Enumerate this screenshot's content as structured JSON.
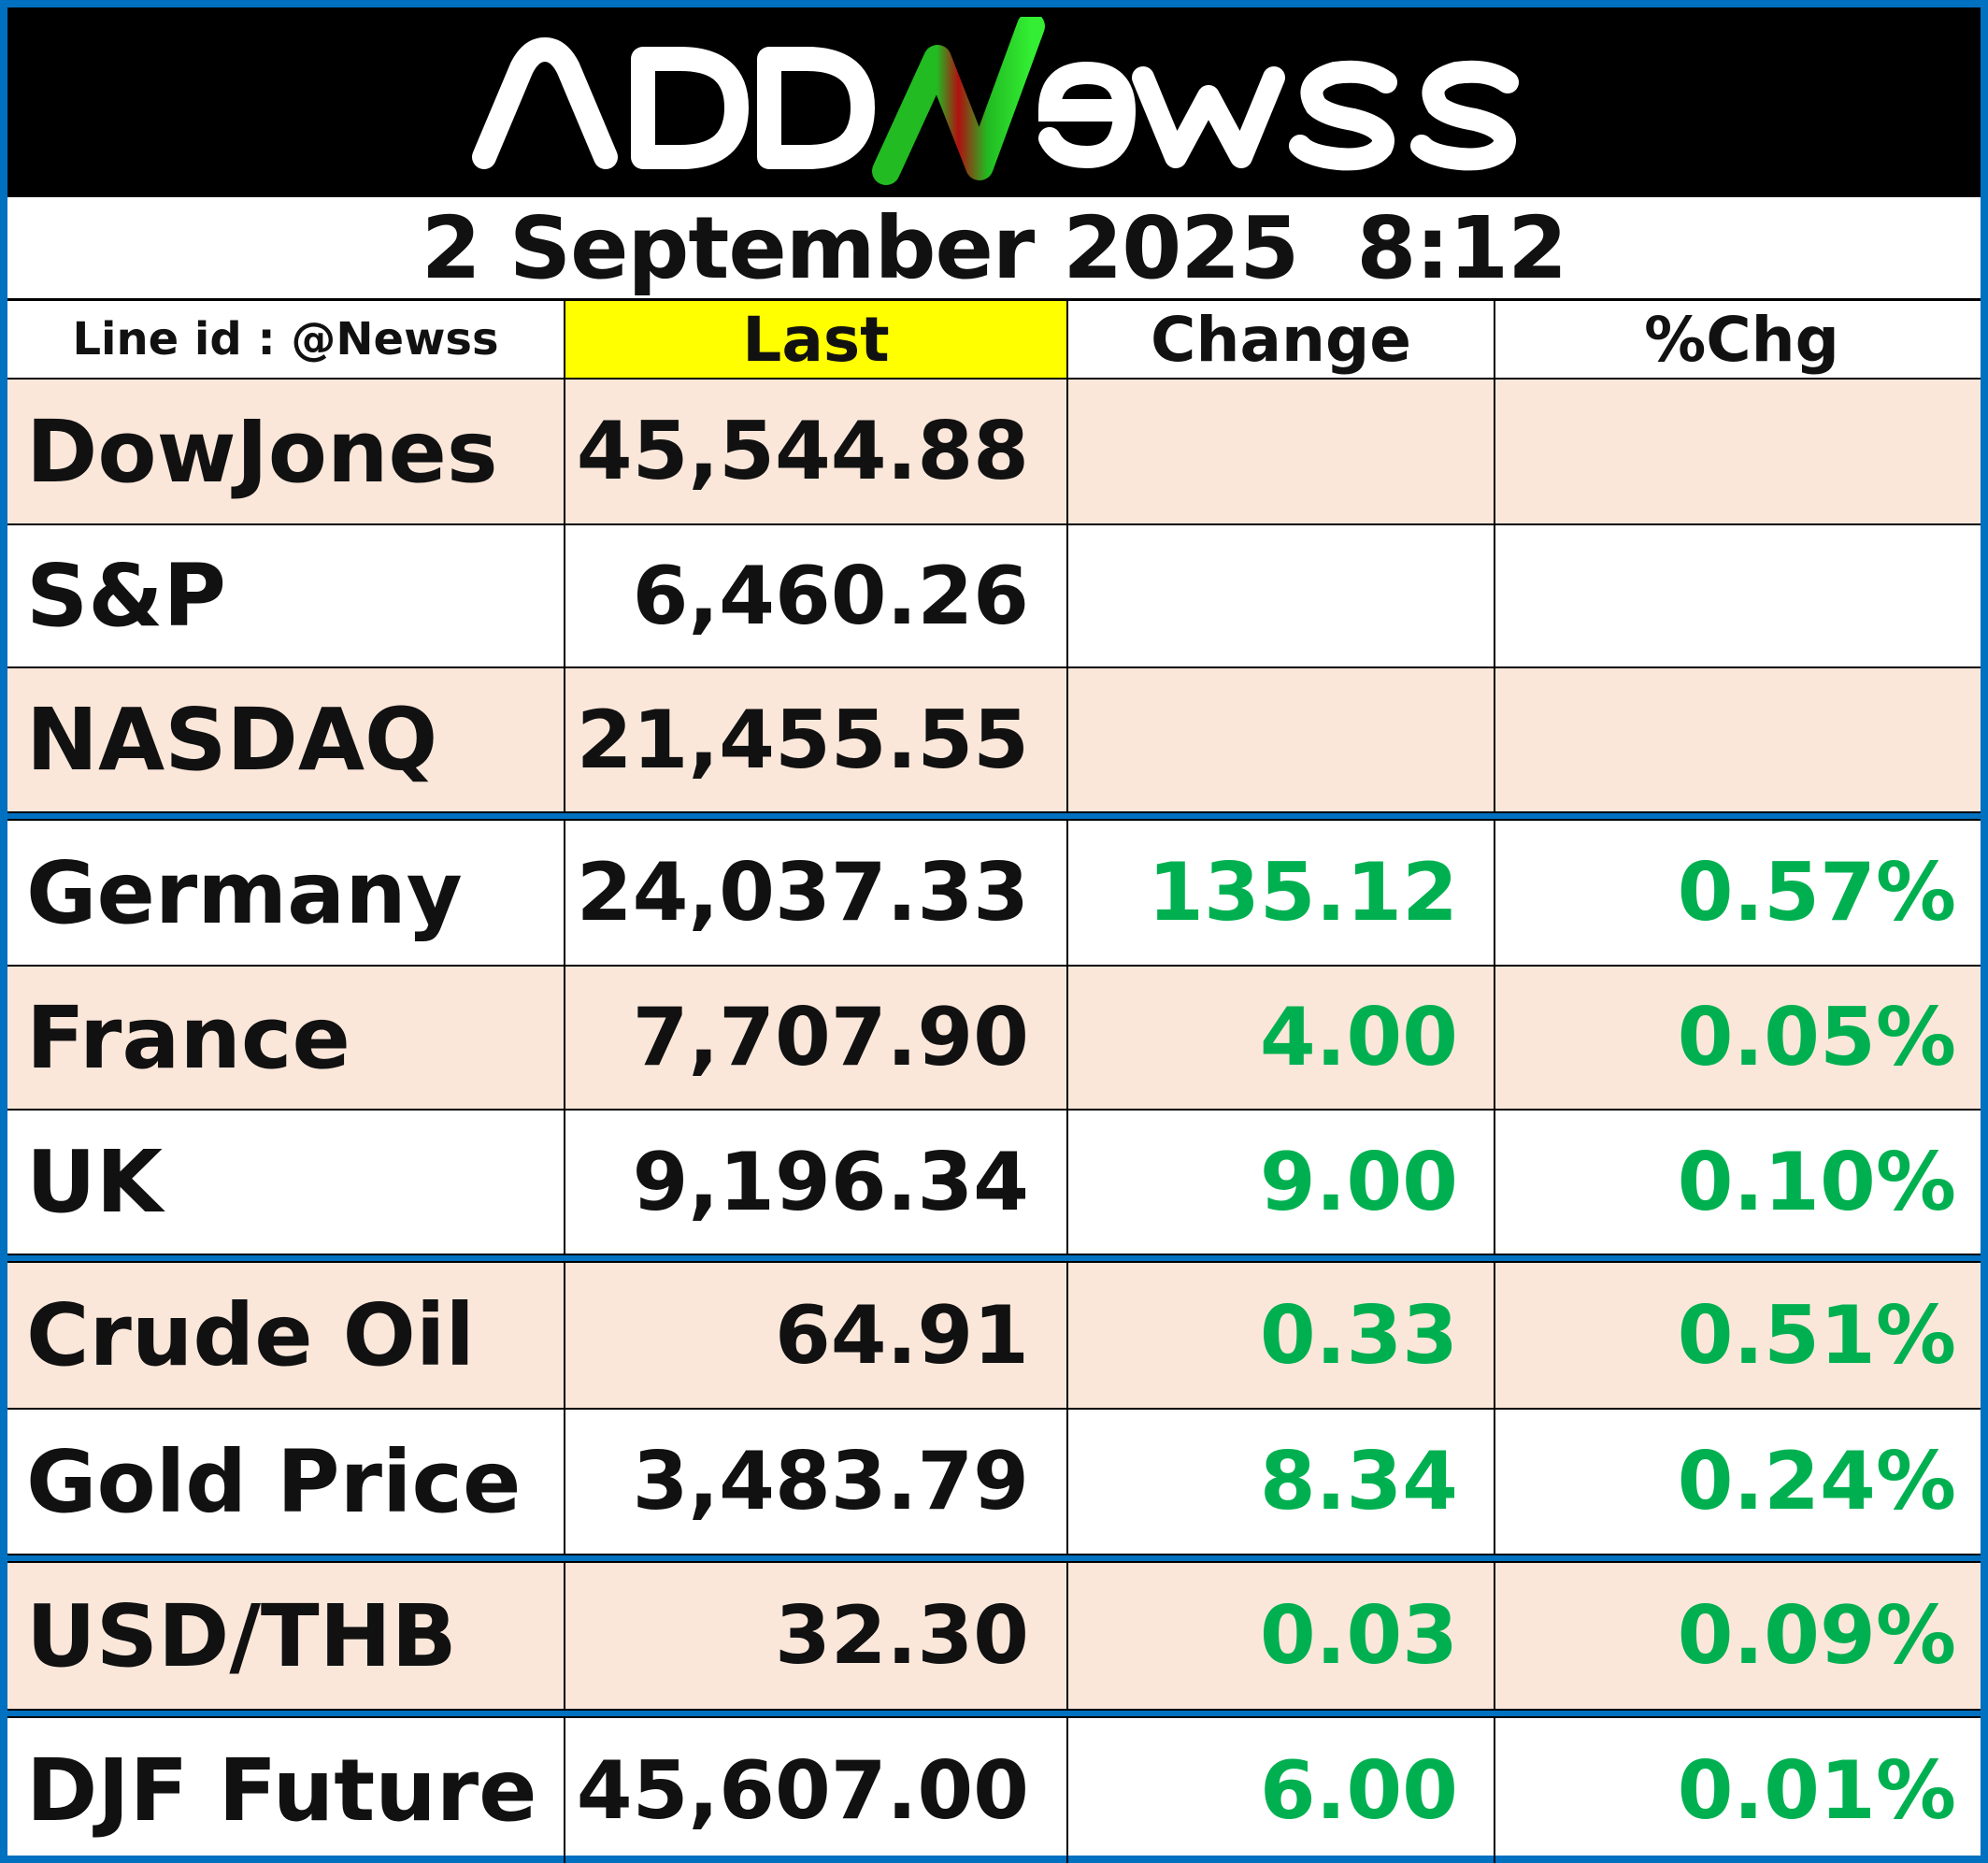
{
  "brand": {
    "logo_text": "ADDNewss",
    "colors": {
      "green": "#22cc22",
      "red": "#c00000",
      "background": "#000000"
    }
  },
  "timestamp": "2 September 2025  8:12",
  "header": {
    "line_id": "Line id : @Newss",
    "last": "Last",
    "change": "Change",
    "pct_change": "%Chg"
  },
  "rows": [
    {
      "name": "DowJones",
      "last": "45,544.88",
      "change": "",
      "pct": ""
    },
    {
      "name": "S&P",
      "last": "6,460.26",
      "change": "",
      "pct": ""
    },
    {
      "name": "NASDAQ",
      "last": "21,455.55",
      "change": "",
      "pct": ""
    },
    {
      "name": "Germany",
      "last": "24,037.33",
      "change": "135.12",
      "pct": "0.57%"
    },
    {
      "name": "France",
      "last": "7,707.90",
      "change": "4.00",
      "pct": "0.05%"
    },
    {
      "name": "UK",
      "last": "9,196.34",
      "change": "9.00",
      "pct": "0.10%"
    },
    {
      "name": "Crude Oil",
      "last": "64.91",
      "change": "0.33",
      "pct": "0.51%"
    },
    {
      "name": "Gold Price",
      "last": "3,483.79",
      "change": "8.34",
      "pct": "0.24%"
    },
    {
      "name": "USD/THB",
      "last": "32.30",
      "change": "0.03",
      "pct": "0.09%"
    },
    {
      "name": "DJF Future",
      "last": "45,607.00",
      "change": "6.00",
      "pct": "0.01%"
    }
  ],
  "theme": {
    "row_tint": "#fbe7da",
    "positive": "#00b050",
    "highlight": "#ffff00",
    "border_blue": "#0070c0"
  }
}
